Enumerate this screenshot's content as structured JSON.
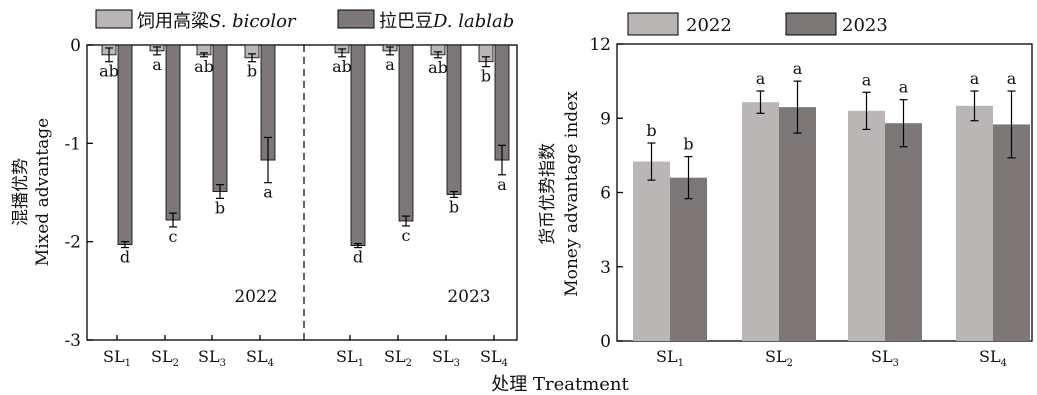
{
  "colors": {
    "light": "#bbb6b6",
    "dark": "#7d7778",
    "axis": "#000000"
  },
  "chart_data": [
    {
      "type": "bar",
      "ylabel_cn": "混播优势",
      "ylabel_en": "Mixed advantage",
      "ylim": [
        -3,
        0
      ],
      "yticks": [
        "0",
        "-1",
        "-2",
        "-3"
      ],
      "legend": [
        {
          "name_cn": "饲用高粱",
          "name_sci": "S. bicolor"
        },
        {
          "name_cn": "拉巴豆",
          "name_sci": "D. lablab"
        }
      ],
      "panels": [
        {
          "year": "2022",
          "categories": [
            "SL1",
            "SL2",
            "SL3",
            "SL4"
          ],
          "series": [
            {
              "values": [
                -0.1,
                -0.06,
                -0.1,
                -0.13
              ],
              "errors": [
                0.07,
                0.04,
                0.02,
                0.04
              ],
              "letters": [
                "ab",
                "a",
                "ab",
                "b"
              ]
            },
            {
              "values": [
                -2.03,
                -1.78,
                -1.49,
                -1.17
              ],
              "errors": [
                0.03,
                0.07,
                0.07,
                0.23
              ],
              "letters": [
                "d",
                "c",
                "b",
                "a"
              ]
            }
          ]
        },
        {
          "year": "2023",
          "categories": [
            "SL1",
            "SL2",
            "SL3",
            "SL4"
          ],
          "series": [
            {
              "values": [
                -0.08,
                -0.06,
                -0.1,
                -0.17
              ],
              "errors": [
                0.04,
                0.04,
                0.03,
                0.05
              ],
              "letters": [
                "ab",
                "a",
                "ab",
                "b"
              ]
            },
            {
              "values": [
                -2.04,
                -1.79,
                -1.52,
                -1.17
              ],
              "errors": [
                0.02,
                0.05,
                0.03,
                0.15
              ],
              "letters": [
                "d",
                "c",
                "b",
                "a"
              ]
            }
          ]
        }
      ]
    },
    {
      "type": "bar",
      "ylabel_cn": "货币优势指数",
      "ylabel_en": "Money advantage index",
      "ylim": [
        0,
        12
      ],
      "yticks": [
        "0",
        "3",
        "6",
        "9",
        "12"
      ],
      "categories": [
        "SL1",
        "SL2",
        "SL3",
        "SL4"
      ],
      "series": [
        {
          "name": "2022",
          "values": [
            7.25,
            9.65,
            9.3,
            9.5
          ],
          "errors": [
            0.75,
            0.45,
            0.75,
            0.6
          ],
          "letters": [
            "b",
            "a",
            "a",
            "a"
          ]
        },
        {
          "name": "2023",
          "values": [
            6.6,
            9.45,
            8.8,
            8.75
          ],
          "errors": [
            0.85,
            1.05,
            0.95,
            1.35
          ],
          "letters": [
            "b",
            "a",
            "a",
            "a"
          ]
        }
      ]
    }
  ],
  "xlabel": "处理 Treatment"
}
